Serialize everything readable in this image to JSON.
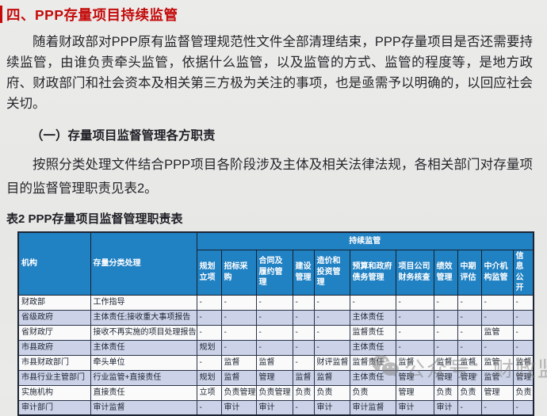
{
  "page": {
    "title": "四、PPP存量项目持续监管",
    "paragraph1": "随着财政部对PPP原有监督管理规范性文件全部清理结束，PPP存量项目是否还需要持续监管，由谁负责牵头监管，依据什么监管，以及监管的方式、监管的程度等，是地方政府、财政部门和社会资本及相关第三方极为关注的事项，也是亟需予以明确的，以回应社会关切。",
    "section_heading": "（一）存量项目监督管理各方职责",
    "paragraph2": "按照分类处理文件结合PPP项目各阶段涉及主体及相关法律法规，各相关部门对存量项目的监督管理职责见表2。",
    "table_caption": "表2  PPP存量项目监督管理职责表"
  },
  "table": {
    "col1_header": "机构",
    "col2_header": "存量分类处理",
    "group_header": "持续监管",
    "sub_headers": [
      "规划立项",
      "招标采购",
      "合同及履约管理",
      "建设管理",
      "造价和投资管理",
      "预算和政府债务管理",
      "项目公司财务核查",
      "绩效管理",
      "中期评估",
      "中介机构监管",
      "信息公开"
    ],
    "rows": [
      {
        "org": "财政部",
        "handling": "工作指导",
        "cells": [
          "-",
          "-",
          "-",
          "-",
          "-",
          "-",
          "-",
          "-",
          "-",
          "-",
          "-"
        ]
      },
      {
        "org": "省级政府",
        "handling": "主体责任;接收重大事项报告",
        "cells": [
          "-",
          "-",
          "-",
          "-",
          "-",
          "主体责任",
          "-",
          "-",
          "-",
          "-",
          "-"
        ]
      },
      {
        "org": "省财政厅",
        "handling": "接收不再实施的项目处理报告",
        "cells": [
          "-",
          "-",
          "-",
          "-",
          "-",
          "监督责任",
          "-",
          "-",
          "-",
          "监管",
          "-"
        ]
      },
      {
        "org": "市县政府",
        "handling": "主体责任",
        "cells": [
          "规划",
          "-",
          "-",
          "-",
          "-",
          "主体责任",
          "-",
          "-",
          "-",
          "-",
          "-"
        ]
      },
      {
        "org": "市县财政部门",
        "handling": "牵头单位",
        "cells": [
          "-",
          "监督",
          "监督",
          "-",
          "财评监督",
          "监督责任",
          "监督",
          "监督",
          "监督",
          "监管",
          "监督"
        ]
      },
      {
        "org": "市县行业主管部门",
        "handling": "行业监管+直接责任",
        "cells": [
          "规划",
          "监督",
          "管理",
          "监督",
          "监督",
          "主体责任",
          "管理",
          "管理",
          "管理",
          "监管",
          "管理"
        ]
      },
      {
        "org": "实施机构",
        "handling": "直接责任",
        "cells": [
          "立项",
          "负责管理",
          "负责管理",
          "负责",
          "负责",
          "负责",
          "管理",
          "负责",
          "负责",
          "管理",
          "负责"
        ]
      },
      {
        "org": "审计部门",
        "handling": "审计监督",
        "cells": [
          "-",
          "审计",
          "审计",
          "-",
          "审计",
          "审计监督",
          "审计",
          "审计",
          "-",
          "-",
          "-"
        ]
      }
    ]
  },
  "watermark": {
    "text": "公众号：财政监督",
    "icon": "wechat-icon"
  },
  "colors": {
    "title_red": "#c40a0a",
    "header_blue": "#2081c3",
    "alt_row_lavender": "#ccd3e8",
    "border_navy": "#1c2433",
    "page_background": "#e9e9e7",
    "watermark_gray": "#7d7d7d"
  }
}
